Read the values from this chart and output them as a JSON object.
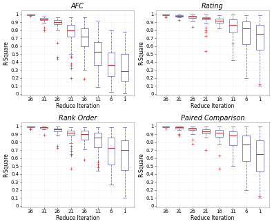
{
  "titles": [
    "AFC",
    "Rating",
    "Rank Order",
    "Paired Comparison"
  ],
  "xlabel": "Reduce Iteration",
  "ylabel": "R-Square",
  "categories": [
    "36",
    "31",
    "26",
    "21",
    "16",
    "11",
    "6",
    "1"
  ],
  "background_color": "#ffffff",
  "box_facecolor": "#ffffff",
  "box_edgecolor": "#7777aa",
  "median_color": "#cc3333",
  "flier_color": "#cc3333",
  "whisker_color": "#7777aa",
  "cap_color": "#7777aa",
  "grid_color": "#dddddd",
  "title_fontsize": 7,
  "label_fontsize": 5.5,
  "tick_fontsize": 5,
  "yticks": [
    0,
    0.1,
    0.2,
    0.3,
    0.4,
    0.5,
    0.6,
    0.7,
    0.8,
    0.9,
    1.0
  ],
  "ytick_labels": [
    "0",
    "0.1",
    "0.2",
    "0.3",
    "0.4",
    "0.5",
    "0.6",
    "0.7",
    "0.8",
    "0.9",
    "1"
  ],
  "afc_data": {
    "36": {
      "q1": 0.988,
      "median": 0.993,
      "q3": 0.997,
      "whislo": 0.985,
      "whishi": 1.0,
      "fliers": [
        0.977
      ]
    },
    "31": {
      "q1": 0.925,
      "median": 0.94,
      "q3": 0.955,
      "whislo": 0.895,
      "whishi": 0.97,
      "fliers": [
        0.795,
        0.83
      ]
    },
    "26": {
      "q1": 0.875,
      "median": 0.905,
      "q3": 0.93,
      "whislo": 0.8,
      "whishi": 0.96,
      "fliers": [
        0.64,
        0.44,
        0.46
      ]
    },
    "21": {
      "q1": 0.72,
      "median": 0.8,
      "q3": 0.865,
      "whislo": 0.5,
      "whishi": 0.96,
      "fliers": [
        0.32,
        0.35,
        0.38,
        0.465,
        0.47,
        0.2
      ]
    },
    "16": {
      "q1": 0.6,
      "median": 0.72,
      "q3": 0.82,
      "whislo": 0.3,
      "whishi": 0.96,
      "fliers": [
        0.19
      ]
    },
    "11": {
      "q1": 0.36,
      "median": 0.53,
      "q3": 0.65,
      "whislo": 0.08,
      "whishi": 0.92,
      "fliers": []
    },
    "6": {
      "q1": 0.22,
      "median": 0.36,
      "q3": 0.52,
      "whislo": 0.02,
      "whishi": 0.8,
      "fliers": []
    },
    "1": {
      "q1": 0.16,
      "median": 0.28,
      "q3": 0.5,
      "whislo": 0.01,
      "whishi": 0.78,
      "fliers": []
    }
  },
  "rating_data": {
    "36": {
      "q1": 0.992,
      "median": 0.997,
      "q3": 1.0,
      "whislo": 0.988,
      "whishi": 1.0,
      "fliers": [
        0.975,
        0.965
      ]
    },
    "31": {
      "q1": 0.975,
      "median": 0.983,
      "q3": 0.99,
      "whislo": 0.96,
      "whishi": 1.0,
      "fliers": [
        0.93
      ]
    },
    "26": {
      "q1": 0.958,
      "median": 0.97,
      "q3": 0.982,
      "whislo": 0.91,
      "whishi": 0.998,
      "fliers": [
        0.84
      ]
    },
    "21": {
      "q1": 0.935,
      "median": 0.95,
      "q3": 0.965,
      "whislo": 0.88,
      "whishi": 0.996,
      "fliers": [
        0.8,
        0.83,
        0.78,
        0.725,
        0.54
      ]
    },
    "16": {
      "q1": 0.89,
      "median": 0.92,
      "q3": 0.945,
      "whislo": 0.82,
      "whishi": 0.99,
      "fliers": []
    },
    "11": {
      "q1": 0.77,
      "median": 0.87,
      "q3": 0.94,
      "whislo": 0.42,
      "whishi": 1.0,
      "fliers": [
        0.63
      ]
    },
    "6": {
      "q1": 0.62,
      "median": 0.82,
      "q3": 0.91,
      "whislo": 0.2,
      "whishi": 0.99,
      "fliers": []
    },
    "1": {
      "q1": 0.55,
      "median": 0.75,
      "q3": 0.87,
      "whislo": 0.1,
      "whishi": 0.99,
      "fliers": [
        0.12
      ]
    }
  },
  "rankorder_data": {
    "36": {
      "q1": 0.992,
      "median": 0.997,
      "q3": 1.0,
      "whislo": 0.99,
      "whishi": 1.0,
      "fliers": [
        0.97,
        0.96
      ]
    },
    "31": {
      "q1": 0.975,
      "median": 0.985,
      "q3": 0.991,
      "whislo": 0.96,
      "whishi": 1.0,
      "fliers": [
        0.89
      ]
    },
    "26": {
      "q1": 0.94,
      "median": 0.96,
      "q3": 0.975,
      "whislo": 0.88,
      "whishi": 0.998,
      "fliers": [
        0.75,
        0.73
      ]
    },
    "21": {
      "q1": 0.885,
      "median": 0.92,
      "q3": 0.945,
      "whislo": 0.79,
      "whishi": 0.99,
      "fliers": [
        0.65,
        0.68,
        0.72,
        0.75,
        0.63,
        0.47
      ]
    },
    "16": {
      "q1": 0.83,
      "median": 0.905,
      "q3": 0.945,
      "whislo": 0.71,
      "whishi": 0.99,
      "fliers": [
        0.58
      ]
    },
    "11": {
      "q1": 0.74,
      "median": 0.86,
      "q3": 0.92,
      "whislo": 0.44,
      "whishi": 0.99,
      "fliers": [
        0.52,
        0.55,
        0.48
      ]
    },
    "6": {
      "q1": 0.52,
      "median": 0.73,
      "q3": 0.86,
      "whislo": 0.27,
      "whishi": 0.99,
      "fliers": []
    },
    "1": {
      "q1": 0.45,
      "median": 0.7,
      "q3": 0.82,
      "whislo": 0.1,
      "whishi": 0.99,
      "fliers": []
    }
  },
  "pairedcomp_data": {
    "36": {
      "q1": 0.992,
      "median": 0.997,
      "q3": 1.0,
      "whislo": 0.99,
      "whishi": 1.0,
      "fliers": [
        0.97
      ]
    },
    "31": {
      "q1": 0.975,
      "median": 0.985,
      "q3": 0.993,
      "whislo": 0.95,
      "whishi": 1.0,
      "fliers": [
        0.9,
        0.88
      ]
    },
    "26": {
      "q1": 0.95,
      "median": 0.968,
      "q3": 0.982,
      "whislo": 0.905,
      "whishi": 0.998,
      "fliers": [
        0.83,
        0.78
      ]
    },
    "21": {
      "q1": 0.91,
      "median": 0.94,
      "q3": 0.962,
      "whislo": 0.855,
      "whishi": 0.995,
      "fliers": [
        0.7
      ]
    },
    "16": {
      "q1": 0.87,
      "median": 0.915,
      "q3": 0.95,
      "whislo": 0.775,
      "whishi": 0.995,
      "fliers": [
        0.63,
        0.47
      ]
    },
    "11": {
      "q1": 0.76,
      "median": 0.88,
      "q3": 0.94,
      "whislo": 0.5,
      "whishi": 0.998,
      "fliers": []
    },
    "6": {
      "q1": 0.56,
      "median": 0.77,
      "q3": 0.88,
      "whislo": 0.2,
      "whishi": 0.995,
      "fliers": []
    },
    "1": {
      "q1": 0.43,
      "median": 0.65,
      "q3": 0.82,
      "whislo": 0.1,
      "whishi": 0.995,
      "fliers": [
        0.12
      ]
    }
  }
}
